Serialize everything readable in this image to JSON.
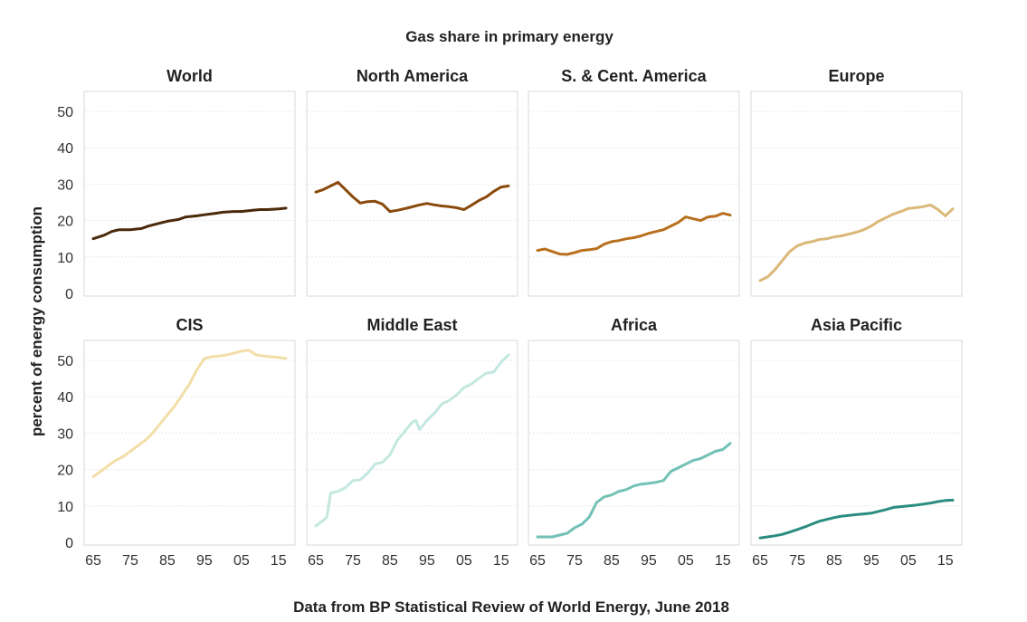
{
  "chart_data": {
    "type": "line",
    "title": "Gas share in primary energy",
    "ylabel": "percent of energy consumption",
    "caption": "Data from BP Statistical Review of World Energy, June 2018",
    "x_range": [
      1965,
      2017
    ],
    "ylim": [
      0,
      55
    ],
    "x_ticks": [
      "65",
      "75",
      "85",
      "95",
      "05",
      "15"
    ],
    "y_ticks": [
      "0",
      "10",
      "20",
      "30",
      "40",
      "50"
    ],
    "grid": true,
    "panels": [
      {
        "name": "World",
        "color": "#4a2a0a",
        "x": [
          1965,
          1968,
          1970,
          1972,
          1975,
          1978,
          1980,
          1983,
          1985,
          1988,
          1990,
          1993,
          1995,
          1998,
          2000,
          2003,
          2005,
          2008,
          2010,
          2012,
          2015,
          2017
        ],
        "y": [
          15,
          16,
          17,
          17.5,
          17.5,
          17.8,
          18.5,
          19.3,
          19.8,
          20.3,
          21,
          21.3,
          21.6,
          22,
          22.3,
          22.5,
          22.5,
          22.8,
          23,
          23,
          23.2,
          23.4
        ]
      },
      {
        "name": "North America",
        "color": "#8a4a0c",
        "x": [
          1965,
          1967,
          1969,
          1970,
          1971,
          1973,
          1975,
          1977,
          1979,
          1981,
          1983,
          1985,
          1987,
          1990,
          1993,
          1995,
          1997,
          1999,
          2001,
          2003,
          2005,
          2007,
          2009,
          2011,
          2013,
          2015,
          2017
        ],
        "y": [
          27.8,
          28.5,
          29.5,
          30,
          30.5,
          28.5,
          26.5,
          24.8,
          25.2,
          25.3,
          24.5,
          22.5,
          22.8,
          23.5,
          24.3,
          24.7,
          24.3,
          24,
          23.8,
          23.5,
          23,
          24.2,
          25.5,
          26.5,
          28,
          29.2,
          29.5
        ]
      },
      {
        "name": "S. & Cent. America",
        "color": "#b8701e",
        "x": [
          1965,
          1967,
          1969,
          1971,
          1973,
          1975,
          1977,
          1979,
          1981,
          1983,
          1985,
          1987,
          1989,
          1991,
          1993,
          1995,
          1997,
          1999,
          2001,
          2003,
          2005,
          2007,
          2009,
          2011,
          2013,
          2015,
          2017
        ],
        "y": [
          11.8,
          12.2,
          11.5,
          10.8,
          10.7,
          11.2,
          11.8,
          12,
          12.3,
          13.5,
          14.2,
          14.5,
          15,
          15.3,
          15.8,
          16.5,
          17,
          17.5,
          18.5,
          19.5,
          21,
          20.5,
          20,
          21,
          21.2,
          22,
          21.5
        ]
      },
      {
        "name": "Europe",
        "color": "#dbb878",
        "x": [
          1965,
          1967,
          1969,
          1971,
          1973,
          1975,
          1977,
          1979,
          1981,
          1983,
          1985,
          1987,
          1989,
          1991,
          1993,
          1995,
          1997,
          1999,
          2001,
          2003,
          2005,
          2007,
          2009,
          2011,
          2013,
          2015,
          2017
        ],
        "y": [
          3.5,
          4.5,
          6.5,
          9,
          11.5,
          13,
          13.8,
          14.2,
          14.8,
          15,
          15.5,
          15.8,
          16.3,
          16.8,
          17.5,
          18.5,
          19.8,
          20.8,
          21.8,
          22.5,
          23.3,
          23.5,
          23.8,
          24.3,
          23,
          21.3,
          23.2
        ]
      },
      {
        "name": "CIS",
        "color": "#f3dea8",
        "x": [
          1965,
          1967,
          1969,
          1971,
          1973,
          1975,
          1977,
          1979,
          1981,
          1983,
          1985,
          1987,
          1989,
          1991,
          1993,
          1995,
          1997,
          1999,
          2001,
          2003,
          2005,
          2007,
          2009,
          2011,
          2013,
          2015,
          2017
        ],
        "y": [
          18,
          19.5,
          21,
          22.5,
          23.5,
          25,
          26.5,
          28,
          30,
          32.5,
          35,
          37.5,
          40.5,
          43.5,
          47.5,
          50.5,
          51,
          51.2,
          51.5,
          52,
          52.5,
          52.8,
          51.5,
          51.2,
          51,
          50.8,
          50.5
        ]
      },
      {
        "name": "Middle East",
        "color": "#c3e8e0",
        "x": [
          1965,
          1967,
          1968,
          1969,
          1971,
          1973,
          1975,
          1977,
          1979,
          1981,
          1983,
          1985,
          1987,
          1989,
          1991,
          1992,
          1993,
          1995,
          1997,
          1999,
          2001,
          2003,
          2005,
          2007,
          2009,
          2011,
          2013,
          2015,
          2017
        ],
        "y": [
          4.5,
          6,
          7,
          13.5,
          14,
          15,
          17,
          17.2,
          19,
          21.5,
          22,
          24,
          28,
          30.5,
          33,
          33.5,
          31,
          33.5,
          35.5,
          38,
          39,
          40.5,
          42.5,
          43.5,
          45,
          46.5,
          46.8,
          49.5,
          51.5
        ]
      },
      {
        "name": "Africa",
        "color": "#72c1b6",
        "x": [
          1965,
          1967,
          1969,
          1971,
          1973,
          1975,
          1977,
          1979,
          1981,
          1983,
          1985,
          1987,
          1989,
          1991,
          1993,
          1995,
          1997,
          1999,
          2001,
          2003,
          2005,
          2007,
          2009,
          2011,
          2013,
          2015,
          2017
        ],
        "y": [
          1.5,
          1.5,
          1.5,
          2,
          2.5,
          4,
          5,
          7,
          11,
          12.5,
          13,
          14,
          14.5,
          15.5,
          16,
          16.2,
          16.5,
          17,
          19.5,
          20.5,
          21.5,
          22.5,
          23,
          24,
          25,
          25.5,
          27.2
        ]
      },
      {
        "name": "Asia Pacific",
        "color": "#2a8c80",
        "x": [
          1965,
          1967,
          1969,
          1971,
          1973,
          1975,
          1977,
          1979,
          1981,
          1983,
          1985,
          1987,
          1989,
          1991,
          1993,
          1995,
          1997,
          1999,
          2001,
          2003,
          2005,
          2007,
          2009,
          2011,
          2013,
          2015,
          2017
        ],
        "y": [
          1.2,
          1.5,
          1.8,
          2.2,
          2.8,
          3.5,
          4.2,
          5,
          5.8,
          6.3,
          6.8,
          7.2,
          7.4,
          7.6,
          7.8,
          8,
          8.5,
          9,
          9.6,
          9.8,
          10,
          10.2,
          10.5,
          10.8,
          11.2,
          11.5,
          11.6
        ]
      }
    ]
  }
}
